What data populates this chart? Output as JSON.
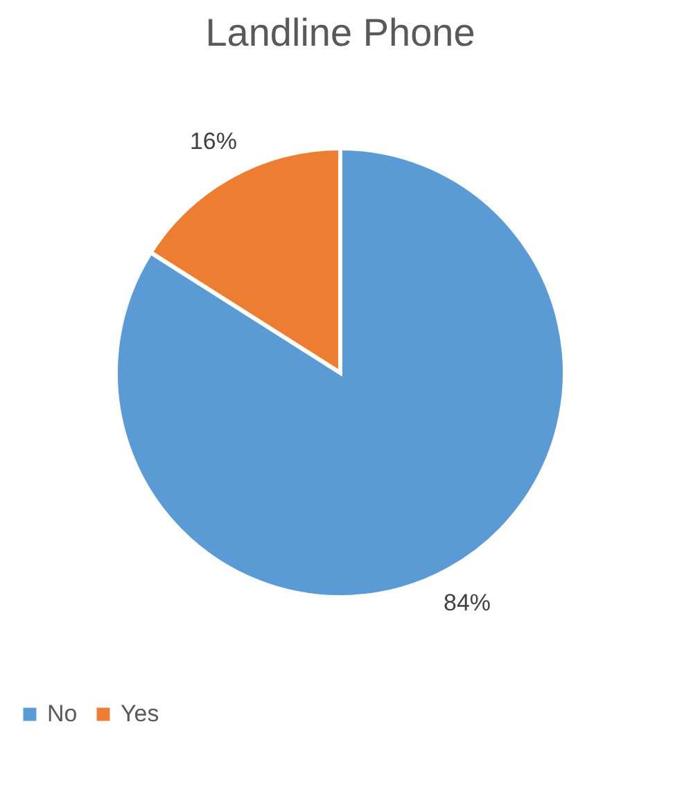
{
  "chart_data": {
    "type": "pie",
    "title": "Landline Phone",
    "categories": [
      "No",
      "Yes"
    ],
    "values": [
      84,
      16
    ],
    "colors": [
      "#5b9bd5",
      "#ed7d31"
    ],
    "value_labels": [
      "84%",
      "16%"
    ],
    "legend": "bottom"
  }
}
